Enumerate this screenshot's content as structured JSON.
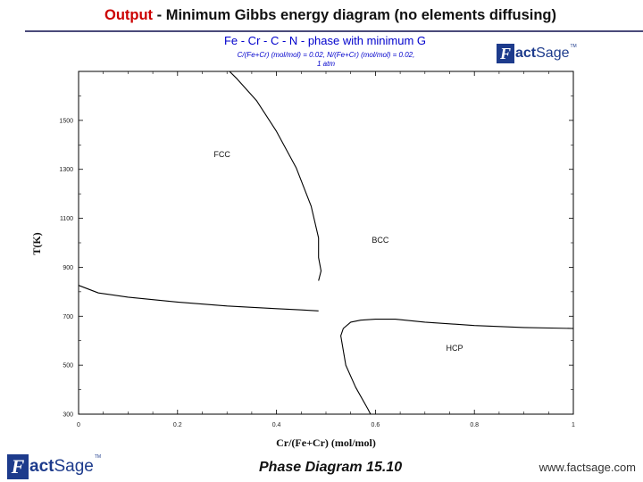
{
  "slide": {
    "title_keyword": "Output",
    "title_rest": " - Minimum Gibbs energy diagram (no elements diffusing)",
    "footer_caption": "Phase Diagram 15.10",
    "footer_site": "www.factsage.com"
  },
  "logos": {
    "top_right": {
      "icon": "factsage-logo-icon",
      "letter": "F",
      "word_bold": "act",
      "word_light": "Sage",
      "tm": "TM"
    },
    "bottom_left": {
      "icon": "factsage-logo-icon",
      "letter": "F",
      "word_bold": "act",
      "word_light": "Sage",
      "tm": "TM"
    }
  },
  "colors": {
    "title_accent": "#cc0000",
    "chart_title": "#0000cc",
    "subtitle": "#0000cc",
    "logo": "#1d3b8c"
  },
  "chart_data": {
    "type": "line",
    "title": "Fe - Cr - C - N  -  phase with minimum G",
    "subtitle_lines": [
      "C/(Fe+Cr) (mol/mol)  = 0.02,  N/(Fe+Cr) (mol/mol)  = 0.02,",
      "1 atm"
    ],
    "xlabel": "Cr/(Fe+Cr) (mol/mol)",
    "ylabel": "T(K)",
    "xlim": [
      0,
      1
    ],
    "ylim": [
      300,
      1700
    ],
    "xticks": [
      0,
      0.2,
      0.4,
      0.6,
      0.8,
      1
    ],
    "xtick_labels": [
      "0",
      "0.2",
      "0.4",
      "0.6",
      "0.8",
      "1"
    ],
    "yticks": [
      300,
      500,
      700,
      900,
      1100,
      1300,
      1500
    ],
    "ytick_labels": [
      "300",
      "500",
      "700",
      "900",
      "1100",
      "1300",
      "1500"
    ],
    "grid": false,
    "region_labels": [
      {
        "text": "BCC",
        "x": 0.61,
        "y": 1000
      },
      {
        "text": "FCC",
        "x": 0.29,
        "y": 1350
      },
      {
        "text": "HCP",
        "x": 0.76,
        "y": 559
      }
    ],
    "series": [
      {
        "values": [
          [
            0.305,
            1700
          ],
          [
            0.32,
            1670
          ],
          [
            0.36,
            1580
          ],
          [
            0.4,
            1455
          ],
          [
            0.44,
            1305
          ],
          [
            0.47,
            1150
          ],
          [
            0.485,
            1020
          ],
          [
            0.485,
            940
          ],
          [
            0.49,
            885
          ],
          [
            0.485,
            845
          ]
        ]
      },
      {
        "values": [
          [
            0,
            826
          ],
          [
            0.04,
            795
          ],
          [
            0.1,
            778
          ],
          [
            0.2,
            758
          ],
          [
            0.3,
            742
          ],
          [
            0.4,
            731
          ],
          [
            0.45,
            726
          ],
          [
            0.485,
            722
          ]
        ]
      },
      {
        "values": [
          [
            0.59,
            300
          ],
          [
            0.585,
            320
          ],
          [
            0.56,
            410
          ],
          [
            0.54,
            500
          ],
          [
            0.535,
            560
          ],
          [
            0.53,
            620
          ],
          [
            0.535,
            650
          ],
          [
            0.55,
            676
          ],
          [
            0.57,
            684
          ],
          [
            0.6,
            688
          ],
          [
            0.64,
            688
          ],
          [
            0.7,
            676
          ],
          [
            0.8,
            662
          ],
          [
            0.9,
            654
          ],
          [
            1,
            650
          ]
        ]
      }
    ]
  }
}
